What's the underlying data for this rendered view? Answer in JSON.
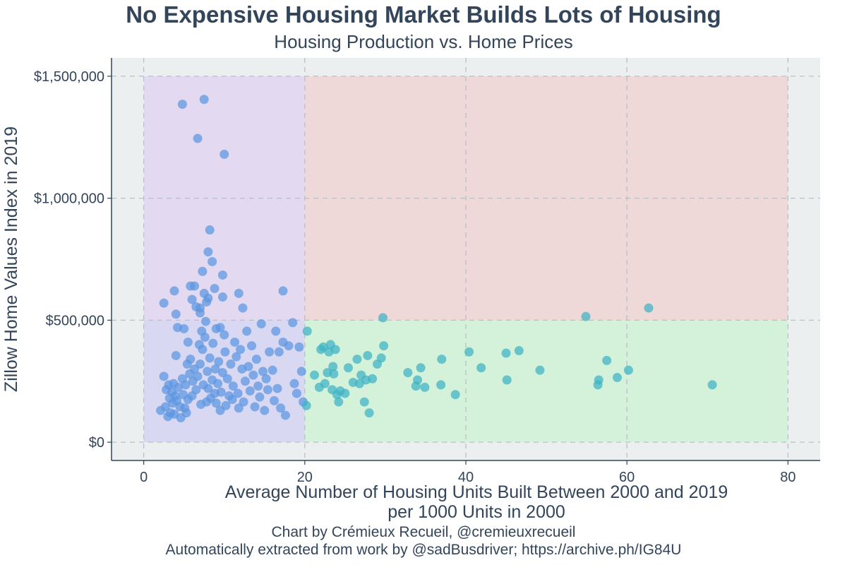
{
  "title": "No Expensive Housing Market Builds Lots of Housing",
  "subtitle": "Housing Production vs. Home Prices",
  "credit_line1": "Chart by Crémieux Recueil, @cremieuxrecueil",
  "credit_line2": "Automatically extracted from work by @sadBusdriver; https://archive.ph/IG84U",
  "colors": {
    "panel_bg": "#eceff0",
    "quad_low_build_high_price": "#e3d9f0",
    "quad_high_build_high_price": "#efd8d8",
    "quad_low_build_low_price": "#d9d8f3",
    "quad_high_build_low_price": "#d4f1d9",
    "point_low_build": "#5b95e0",
    "point_high_build": "#3db3c4",
    "text": "#32455a",
    "grid": "#b9c0c6"
  },
  "chart_data": {
    "type": "scatter",
    "xlabel": "Average Number of Housing Units Built Between 2000 and 2019",
    "xlabel_line2": "per 1000 Units in 2000",
    "ylabel": "Zillow Home Values Index in 2019",
    "xlim": [
      -4,
      84
    ],
    "ylim": [
      -75000,
      1575000
    ],
    "xticks": [
      0,
      20,
      40,
      60,
      80
    ],
    "xtick_labels": [
      "0",
      "20",
      "40",
      "60",
      "80"
    ],
    "yticks": [
      0,
      500000,
      1000000,
      1500000
    ],
    "ytick_labels": [
      "$0",
      "$500,000",
      "$1,000,000",
      "$1,500,000"
    ],
    "grid": true,
    "grid_style": "dashed",
    "quadrants": {
      "x_split": 20,
      "y_split": 500000,
      "x_range": [
        0,
        80
      ],
      "y_range": [
        0,
        1500000
      ]
    },
    "points": [
      [
        2.5,
        570000
      ],
      [
        3.8,
        620000
      ],
      [
        4.0,
        525000
      ],
      [
        4.2,
        470000
      ],
      [
        4.8,
        1385000
      ],
      [
        5.0,
        465000
      ],
      [
        5.5,
        410000
      ],
      [
        5.8,
        640000
      ],
      [
        6.0,
        585000
      ],
      [
        6.3,
        640000
      ],
      [
        6.5,
        555000
      ],
      [
        6.7,
        1245000
      ],
      [
        7.0,
        530000
      ],
      [
        7.0,
        550000
      ],
      [
        7.2,
        455000
      ],
      [
        7.3,
        700000
      ],
      [
        7.5,
        1405000
      ],
      [
        7.5,
        610000
      ],
      [
        7.7,
        495000
      ],
      [
        7.8,
        575000
      ],
      [
        8.0,
        590000
      ],
      [
        8.0,
        780000
      ],
      [
        8.2,
        870000
      ],
      [
        8.5,
        740000
      ],
      [
        8.8,
        630000
      ],
      [
        9.0,
        465000
      ],
      [
        9.5,
        470000
      ],
      [
        9.8,
        595000
      ],
      [
        9.8,
        685000
      ],
      [
        10.0,
        1180000
      ],
      [
        11.8,
        610000
      ],
      [
        12.3,
        550000
      ],
      [
        17.3,
        620000
      ],
      [
        2.1,
        130000
      ],
      [
        2.5,
        270000
      ],
      [
        2.7,
        145000
      ],
      [
        2.8,
        215000
      ],
      [
        3.0,
        105000
      ],
      [
        3.1,
        235000
      ],
      [
        3.2,
        180000
      ],
      [
        3.3,
        120000
      ],
      [
        3.5,
        205000
      ],
      [
        3.6,
        160000
      ],
      [
        3.7,
        240000
      ],
      [
        3.8,
        115000
      ],
      [
        3.9,
        190000
      ],
      [
        4.0,
        355000
      ],
      [
        4.1,
        170000
      ],
      [
        4.3,
        225000
      ],
      [
        4.5,
        145000
      ],
      [
        4.6,
        100000
      ],
      [
        4.8,
        260000
      ],
      [
        4.9,
        195000
      ],
      [
        5.1,
        140000
      ],
      [
        5.2,
        235000
      ],
      [
        5.3,
        120000
      ],
      [
        5.4,
        320000
      ],
      [
        5.5,
        175000
      ],
      [
        5.7,
        280000
      ],
      [
        5.8,
        340000
      ],
      [
        6.0,
        190000
      ],
      [
        6.1,
        250000
      ],
      [
        6.3,
        300000
      ],
      [
        6.5,
        215000
      ],
      [
        6.7,
        270000
      ],
      [
        6.9,
        400000
      ],
      [
        7.0,
        320000
      ],
      [
        7.1,
        155000
      ],
      [
        7.3,
        380000
      ],
      [
        7.4,
        235000
      ],
      [
        7.6,
        430000
      ],
      [
        7.8,
        165000
      ],
      [
        7.9,
        290000
      ],
      [
        8.0,
        220000
      ],
      [
        8.2,
        345000
      ],
      [
        8.3,
        180000
      ],
      [
        8.5,
        255000
      ],
      [
        8.6,
        405000
      ],
      [
        8.8,
        200000
      ],
      [
        8.9,
        300000
      ],
      [
        9.0,
        160000
      ],
      [
        9.2,
        240000
      ],
      [
        9.3,
        330000
      ],
      [
        9.5,
        130000
      ],
      [
        9.6,
        205000
      ],
      [
        9.8,
        285000
      ],
      [
        10.0,
        440000
      ],
      [
        10.1,
        370000
      ],
      [
        10.2,
        150000
      ],
      [
        10.4,
        260000
      ],
      [
        10.6,
        190000
      ],
      [
        10.8,
        320000
      ],
      [
        11.0,
        175000
      ],
      [
        11.1,
        230000
      ],
      [
        11.3,
        410000
      ],
      [
        11.5,
        350000
      ],
      [
        11.7,
        200000
      ],
      [
        11.8,
        140000
      ],
      [
        12.0,
        380000
      ],
      [
        12.2,
        300000
      ],
      [
        12.4,
        165000
      ],
      [
        12.6,
        250000
      ],
      [
        12.8,
        455000
      ],
      [
        13.0,
        310000
      ],
      [
        13.2,
        210000
      ],
      [
        13.4,
        395000
      ],
      [
        13.6,
        275000
      ],
      [
        13.8,
        145000
      ],
      [
        14.0,
        340000
      ],
      [
        14.2,
        230000
      ],
      [
        14.4,
        185000
      ],
      [
        14.6,
        485000
      ],
      [
        14.8,
        290000
      ],
      [
        15.0,
        130000
      ],
      [
        15.2,
        260000
      ],
      [
        15.4,
        215000
      ],
      [
        15.6,
        370000
      ],
      [
        16.0,
        295000
      ],
      [
        16.2,
        170000
      ],
      [
        16.4,
        455000
      ],
      [
        16.6,
        220000
      ],
      [
        16.8,
        370000
      ],
      [
        17.0,
        140000
      ],
      [
        17.3,
        410000
      ],
      [
        17.6,
        110000
      ],
      [
        18.0,
        395000
      ],
      [
        18.5,
        490000
      ],
      [
        18.7,
        240000
      ],
      [
        19.0,
        200000
      ],
      [
        19.3,
        390000
      ],
      [
        19.6,
        290000
      ],
      [
        19.8,
        165000
      ],
      [
        20.2,
        150000
      ],
      [
        20.3,
        455000
      ],
      [
        21.2,
        275000
      ],
      [
        21.8,
        225000
      ],
      [
        22.0,
        380000
      ],
      [
        22.3,
        390000
      ],
      [
        22.5,
        240000
      ],
      [
        22.8,
        285000
      ],
      [
        23.0,
        370000
      ],
      [
        23.2,
        400000
      ],
      [
        23.4,
        215000
      ],
      [
        23.5,
        310000
      ],
      [
        23.6,
        280000
      ],
      [
        23.8,
        380000
      ],
      [
        24.0,
        195000
      ],
      [
        24.2,
        165000
      ],
      [
        24.4,
        210000
      ],
      [
        25.0,
        200000
      ],
      [
        25.4,
        305000
      ],
      [
        26.0,
        245000
      ],
      [
        26.5,
        340000
      ],
      [
        26.8,
        240000
      ],
      [
        27.0,
        275000
      ],
      [
        27.4,
        165000
      ],
      [
        27.6,
        255000
      ],
      [
        27.8,
        355000
      ],
      [
        28.0,
        120000
      ],
      [
        28.4,
        260000
      ],
      [
        29.0,
        320000
      ],
      [
        29.5,
        345000
      ],
      [
        29.7,
        510000
      ],
      [
        29.8,
        395000
      ],
      [
        32.8,
        285000
      ],
      [
        33.8,
        230000
      ],
      [
        34.0,
        255000
      ],
      [
        34.4,
        305000
      ],
      [
        34.9,
        225000
      ],
      [
        36.9,
        235000
      ],
      [
        37.0,
        340000
      ],
      [
        38.7,
        195000
      ],
      [
        40.4,
        370000
      ],
      [
        41.9,
        305000
      ],
      [
        45.0,
        365000
      ],
      [
        45.1,
        255000
      ],
      [
        46.6,
        375000
      ],
      [
        49.2,
        295000
      ],
      [
        54.9,
        515000
      ],
      [
        56.4,
        235000
      ],
      [
        56.5,
        255000
      ],
      [
        57.5,
        335000
      ],
      [
        58.8,
        265000
      ],
      [
        60.2,
        295000
      ],
      [
        62.7,
        550000
      ],
      [
        70.6,
        235000
      ]
    ]
  }
}
